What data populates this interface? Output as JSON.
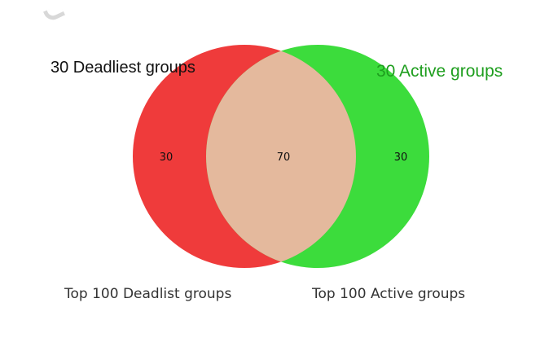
{
  "diagram": {
    "type": "venn2",
    "sets": [
      {
        "label": "Top 100 Deadlist groups",
        "annotation": "30 Deadliest groups",
        "color": "#ee2a2a"
      },
      {
        "label": "Top 100 Active groups",
        "annotation": "30 Active groups",
        "color": "#2bd92b"
      }
    ],
    "regions": {
      "left_only": "30",
      "intersection": "70",
      "right_only": "30"
    },
    "intersection_color": "#e4b99d",
    "annotation_right_color": "#1e9e1e"
  }
}
